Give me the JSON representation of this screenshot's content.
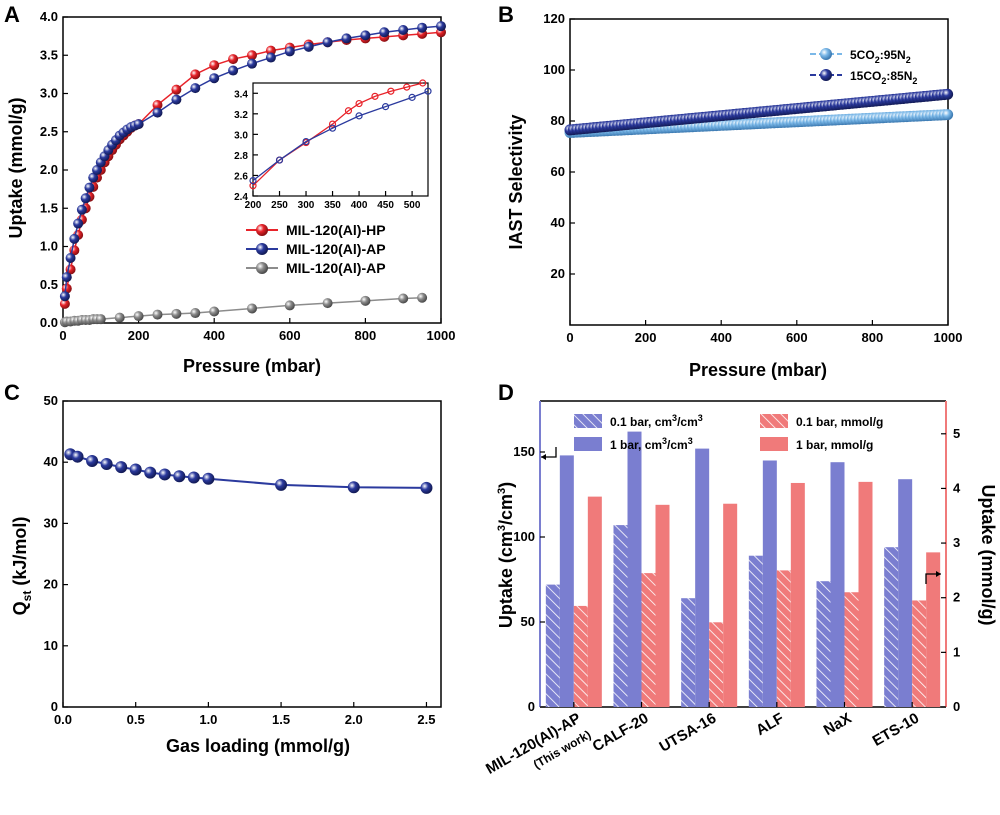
{
  "panels": {
    "A": {
      "letter": "A",
      "xlabel": "Pressure (mbar)",
      "ylabel": "Uptake (mmol/g)"
    },
    "B": {
      "letter": "B",
      "xlabel": "Pressure (mbar)",
      "ylabel": "IAST Selectivity"
    },
    "C": {
      "letter": "C",
      "xlabel": "Gas loading (mmol/g)",
      "ylabel_main": "Q",
      "ylabel_sub": "st",
      "ylabel_rest": " (kJ/mol)"
    },
    "D": {
      "letter": "D",
      "ylabel_left_pre": "Uptake (cm",
      "ylabel_left_sup": "3",
      "ylabel_left_mid": "/cm",
      "ylabel_left_sup2": "3",
      "ylabel_left_post": ")",
      "ylabel_right": "Uptake (mmol/g)",
      "first_label_line1": "MIL-120(Al)-AP",
      "first_label_line2": "(This work)"
    }
  },
  "colors": {
    "red": "#e8232a",
    "blue": "#2b3a9e",
    "gray": "#8c8c8c",
    "lightblue": "#7bb8e8",
    "blue_bar": "#7a7ed0",
    "red_bar": "#f07a7a",
    "right_axis": "#f07a7a"
  },
  "chart_data": [
    {
      "panel": "A",
      "type": "line",
      "xlim": [
        0,
        1000
      ],
      "ylim": [
        0,
        4.0
      ],
      "xticks": [
        "0",
        "200",
        "400",
        "600",
        "800",
        "1000"
      ],
      "yticks": [
        "0.0",
        "0.5",
        "1.0",
        "1.5",
        "2.0",
        "2.5",
        "3.0",
        "3.5",
        "4.0"
      ],
      "series": [
        {
          "name": "MIL-120(Al)-HP",
          "color": "#e8232a",
          "x": [
            5,
            10,
            20,
            30,
            40,
            50,
            60,
            70,
            80,
            90,
            100,
            110,
            120,
            130,
            140,
            150,
            160,
            170,
            180,
            190,
            200,
            250,
            300,
            350,
            400,
            450,
            500,
            550,
            600,
            650,
            700,
            750,
            800,
            850,
            900,
            950,
            1000
          ],
          "y": [
            0.25,
            0.45,
            0.7,
            0.95,
            1.15,
            1.35,
            1.5,
            1.65,
            1.78,
            1.9,
            2.0,
            2.1,
            2.18,
            2.26,
            2.33,
            2.4,
            2.45,
            2.5,
            2.55,
            2.58,
            2.6,
            2.85,
            3.05,
            3.25,
            3.37,
            3.45,
            3.5,
            3.56,
            3.6,
            3.64,
            3.67,
            3.7,
            3.72,
            3.74,
            3.76,
            3.78,
            3.8
          ]
        },
        {
          "name": "MIL-120(Al)-AP",
          "color": "#2b3a9e",
          "x": [
            5,
            10,
            20,
            30,
            40,
            50,
            60,
            70,
            80,
            90,
            100,
            110,
            120,
            130,
            140,
            150,
            160,
            170,
            180,
            190,
            200,
            250,
            300,
            350,
            400,
            450,
            500,
            550,
            600,
            650,
            700,
            750,
            800,
            850,
            900,
            950,
            1000
          ],
          "y": [
            0.35,
            0.6,
            0.85,
            1.1,
            1.3,
            1.48,
            1.63,
            1.77,
            1.9,
            2.0,
            2.1,
            2.18,
            2.26,
            2.33,
            2.39,
            2.45,
            2.49,
            2.53,
            2.56,
            2.58,
            2.6,
            2.75,
            2.92,
            3.07,
            3.2,
            3.3,
            3.39,
            3.47,
            3.55,
            3.61,
            3.67,
            3.72,
            3.76,
            3.8,
            3.83,
            3.86,
            3.88
          ]
        },
        {
          "name": "MIL-120(Al)-AP",
          "color": "#8c8c8c",
          "x": [
            5,
            10,
            20,
            30,
            40,
            50,
            60,
            70,
            80,
            90,
            100,
            150,
            200,
            250,
            300,
            350,
            400,
            500,
            600,
            700,
            800,
            900,
            950
          ],
          "y": [
            0.01,
            0.02,
            0.02,
            0.03,
            0.03,
            0.04,
            0.04,
            0.04,
            0.05,
            0.05,
            0.05,
            0.07,
            0.09,
            0.11,
            0.12,
            0.13,
            0.15,
            0.19,
            0.23,
            0.26,
            0.29,
            0.32,
            0.33
          ]
        }
      ],
      "inset": {
        "xlim": [
          200,
          530
        ],
        "ylim": [
          2.4,
          3.5
        ],
        "xticks": [
          "200",
          "250",
          "300",
          "350",
          "400",
          "450",
          "500"
        ],
        "yticks": [
          "2.4",
          "2.6",
          "2.8",
          "3.0",
          "3.2",
          "3.4"
        ],
        "series": [
          {
            "name": "MIL-120(Al)-HP",
            "color": "#e8232a",
            "x": [
              200,
              250,
              300,
              350,
              380,
              400,
              430,
              460,
              490,
              520
            ],
            "y": [
              2.5,
              2.75,
              2.92,
              3.1,
              3.23,
              3.3,
              3.37,
              3.42,
              3.46,
              3.5
            ]
          },
          {
            "name": "MIL-120(Al)-AP",
            "color": "#2b3a9e",
            "x": [
              200,
              250,
              300,
              350,
              400,
              450,
              500,
              530
            ],
            "y": [
              2.55,
              2.75,
              2.93,
              3.06,
              3.18,
              3.27,
              3.36,
              3.42
            ]
          }
        ]
      }
    },
    {
      "panel": "B",
      "type": "line",
      "xlim": [
        0,
        1000
      ],
      "ylim": [
        0,
        120
      ],
      "xticks": [
        "0",
        "200",
        "400",
        "600",
        "800",
        "1000"
      ],
      "yticks": [
        "20",
        "40",
        "60",
        "80",
        "100",
        "120"
      ],
      "legend_placement": "top-right",
      "series": [
        {
          "name_pre": "5CO",
          "name_sub1": "2",
          "name_mid": ":95N",
          "name_sub2": "2",
          "color": "#7bb8e8",
          "x_start": 0,
          "x_end": 1000,
          "y_start": 75.5,
          "y_end": 82.5
        },
        {
          "name_pre": "15CO",
          "name_sub1": "2",
          "name_mid": ":85N",
          "name_sub2": "2",
          "color": "#2b3a9e",
          "x_start": 0,
          "x_end": 1000,
          "y_start": 76.5,
          "y_end": 90.5
        }
      ]
    },
    {
      "panel": "C",
      "type": "line",
      "xlim": [
        0,
        2.6
      ],
      "ylim": [
        0,
        50
      ],
      "xticks": [
        "0.0",
        "0.5",
        "1.0",
        "1.5",
        "2.0",
        "2.5"
      ],
      "yticks": [
        "0",
        "10",
        "20",
        "30",
        "40",
        "50"
      ],
      "series": [
        {
          "color": "#2b3a9e",
          "x": [
            0.05,
            0.1,
            0.2,
            0.3,
            0.4,
            0.5,
            0.6,
            0.7,
            0.8,
            0.9,
            1.0,
            1.5,
            2.0,
            2.5
          ],
          "y": [
            41.3,
            40.9,
            40.2,
            39.7,
            39.2,
            38.8,
            38.3,
            38.0,
            37.7,
            37.5,
            37.3,
            36.3,
            35.9,
            35.8
          ]
        }
      ]
    },
    {
      "panel": "D",
      "type": "bar",
      "categories": [
        "MIL-120(Al)-AP",
        "CALF-20",
        "UTSA-16",
        "ALF",
        "NaX",
        "ETS-10"
      ],
      "ylim_left": [
        0,
        180
      ],
      "ylim_right": [
        0,
        5.6
      ],
      "yticks_left": [
        "0",
        "50",
        "100",
        "150"
      ],
      "yticks_right": [
        "0",
        "1",
        "2",
        "3",
        "4",
        "5"
      ],
      "series": [
        {
          "name_pre": "0.1 bar, cm",
          "name_sup": "3",
          "name_mid": "/cm",
          "name_sup2": "3",
          "axis": "left",
          "hatched": true,
          "color": "#7a7ed0",
          "values": [
            72,
            107,
            64,
            89,
            74,
            94
          ]
        },
        {
          "name_pre": "1 bar, cm",
          "name_sup": "3",
          "name_mid": "/cm",
          "name_sup2": "3",
          "axis": "left",
          "hatched": false,
          "color": "#7a7ed0",
          "values": [
            148,
            162,
            152,
            145,
            144,
            134
          ]
        },
        {
          "name": "0.1 bar, mmol/g",
          "axis": "right",
          "hatched": true,
          "color": "#f07a7a",
          "values": [
            1.85,
            2.45,
            1.55,
            2.5,
            2.1,
            1.95
          ]
        },
        {
          "name": "1 bar, mmol/g",
          "axis": "right",
          "hatched": false,
          "color": "#f07a7a",
          "values": [
            3.85,
            3.7,
            3.72,
            4.1,
            4.12,
            2.83
          ]
        }
      ]
    }
  ]
}
